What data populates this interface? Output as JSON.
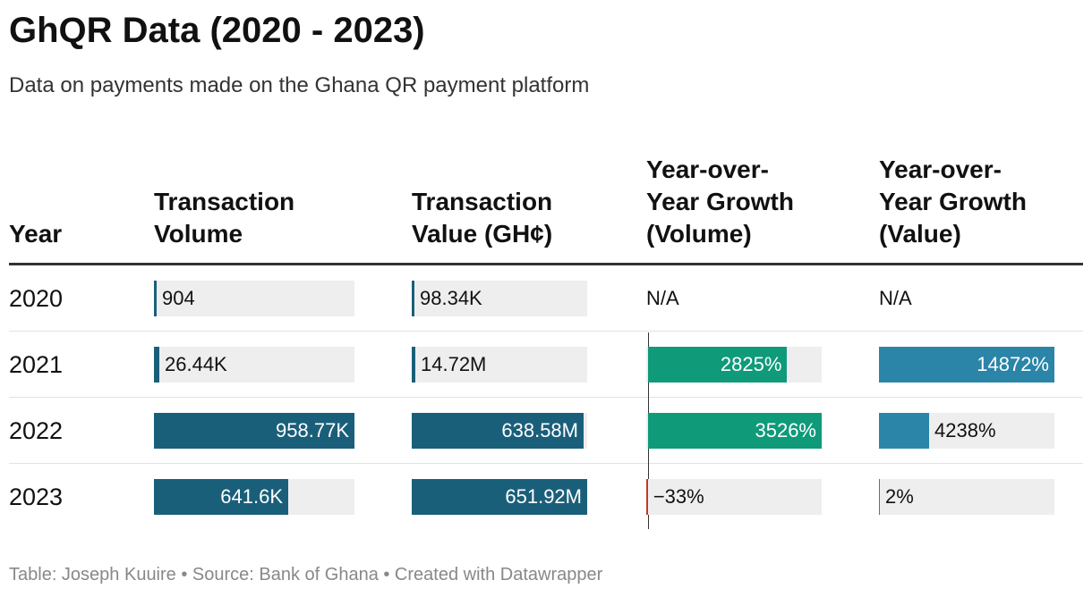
{
  "title": "GhQR Data (2020 - 2023)",
  "subtitle": "Data on payments made on the Ghana QR payment platform",
  "footer": {
    "text": "Table: Joseph Kuuire • Source: Bank of Ghana • Created with Datawrapper"
  },
  "colors": {
    "volume_bar": "#1a5f7a",
    "value_bar": "#1a5f7a",
    "growth_volume_bar": "#0f9a7a",
    "growth_value_bar": "#2a85a8",
    "negative_bar": "#c0392b",
    "track": "#eeeeee"
  },
  "chart_data": {
    "type": "table",
    "columns": [
      {
        "key": "year",
        "label_lines": [
          "Year"
        ]
      },
      {
        "key": "volume",
        "label_lines": [
          "Transaction",
          "Volume"
        ]
      },
      {
        "key": "value",
        "label_lines": [
          "Transaction",
          "Value (GH¢)"
        ]
      },
      {
        "key": "growth_volume",
        "label_lines": [
          "Year-over-",
          "Year Growth",
          "(Volume)"
        ]
      },
      {
        "key": "growth_value",
        "label_lines": [
          "Year-over-",
          "Year Growth",
          "(Value)"
        ]
      }
    ],
    "rows": [
      {
        "year": "2020",
        "volume": 904,
        "volume_label": "904",
        "value": 98340,
        "value_label": "98.34K",
        "growth_volume": null,
        "growth_volume_label": "N/A",
        "growth_value": null,
        "growth_value_label": "N/A"
      },
      {
        "year": "2021",
        "volume": 26440,
        "volume_label": "26.44K",
        "value": 14720000,
        "value_label": "14.72M",
        "growth_volume": 2825,
        "growth_volume_label": "2825%",
        "growth_value": 14872,
        "growth_value_label": "14872%"
      },
      {
        "year": "2022",
        "volume": 958770,
        "volume_label": "958.77K",
        "value": 638580000,
        "value_label": "638.58M",
        "growth_volume": 3526,
        "growth_volume_label": "3526%",
        "growth_value": 4238,
        "growth_value_label": "4238%"
      },
      {
        "year": "2023",
        "volume": 641600,
        "volume_label": "641.6K",
        "value": 651920000,
        "value_label": "651.92M",
        "growth_volume": -33,
        "growth_volume_label": "−33%",
        "growth_value": 2,
        "growth_value_label": "2%"
      }
    ],
    "scales": {
      "volume": {
        "min": 0,
        "max": 958770
      },
      "value": {
        "min": 0,
        "max": 651920000
      },
      "growth_volume": {
        "min": -33,
        "max": 3526
      },
      "growth_value": {
        "min": 0,
        "max": 14872
      }
    }
  }
}
